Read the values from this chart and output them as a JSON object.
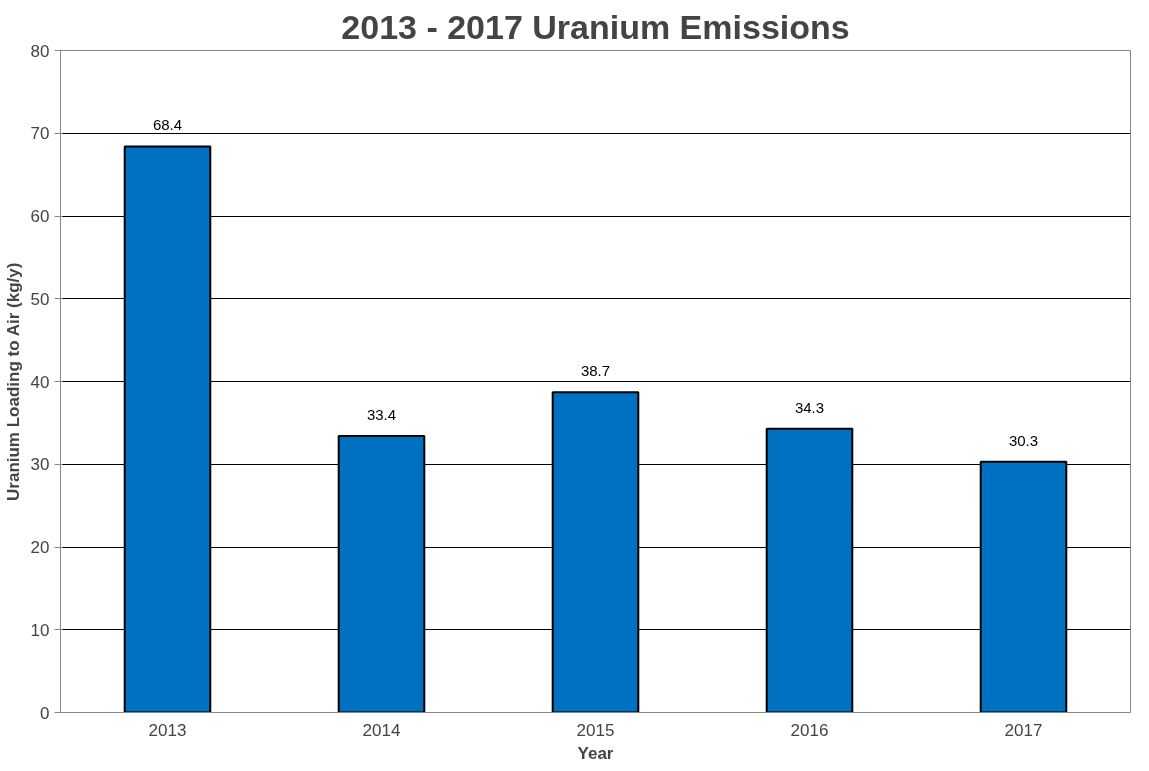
{
  "chart_data": {
    "type": "bar",
    "title": "2013 - 2017 Uranium Emissions",
    "xlabel": "Year",
    "ylabel": "Uranium Loading to Air (kg/y)",
    "categories": [
      "2013",
      "2014",
      "2015",
      "2016",
      "2017"
    ],
    "values": [
      68.4,
      33.4,
      38.7,
      34.3,
      30.3
    ],
    "color": "#0070c0",
    "ylim": [
      0,
      80
    ],
    "yticks": [
      0,
      10,
      20,
      30,
      40,
      50,
      60,
      70,
      80
    ],
    "grid": "y",
    "data_labels": true
  }
}
